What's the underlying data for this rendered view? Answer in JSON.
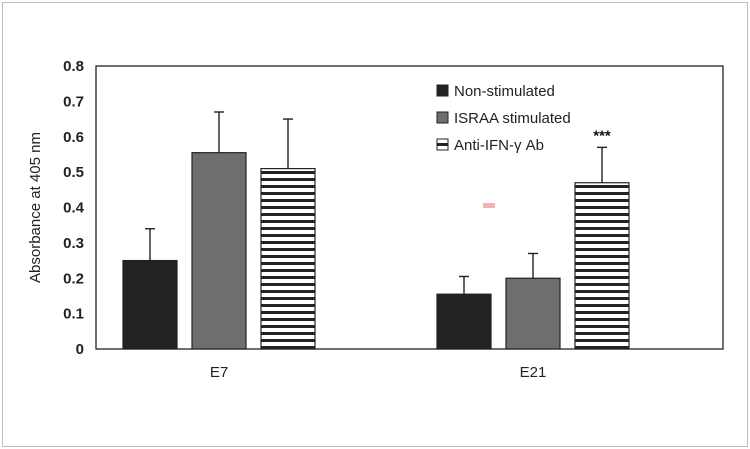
{
  "chart_data": {
    "type": "bar",
    "ylabel": "Absorbance at 405 nm",
    "ylim": [
      0,
      0.8
    ],
    "yticks": [
      "0",
      "0.1",
      "0.2",
      "0.3",
      "0.4",
      "0.5",
      "0.6",
      "0.7",
      "0.8"
    ],
    "categories": [
      "E7",
      "E21"
    ],
    "series": [
      {
        "name": "Non-stimulated",
        "values": [
          0.25,
          0.155
        ],
        "errors": [
          0.09,
          0.05
        ],
        "color": "#222222",
        "pattern": "solid"
      },
      {
        "name": "ISRAA stimulated",
        "values": [
          0.555,
          0.2
        ],
        "errors": [
          0.115,
          0.07
        ],
        "color": "#6e6e6e",
        "pattern": "solid"
      },
      {
        "name": "Anti-IFN-γ Ab",
        "values": [
          0.51,
          0.47
        ],
        "errors": [
          0.14,
          0.1
        ],
        "color": "#ffffff",
        "pattern": "horizontal-stripes"
      }
    ],
    "annotations": [
      {
        "text": "***",
        "category": "E21",
        "series": "Anti-IFN-γ Ab"
      }
    ],
    "legend": "top-right, inside plot",
    "grid": false
  }
}
